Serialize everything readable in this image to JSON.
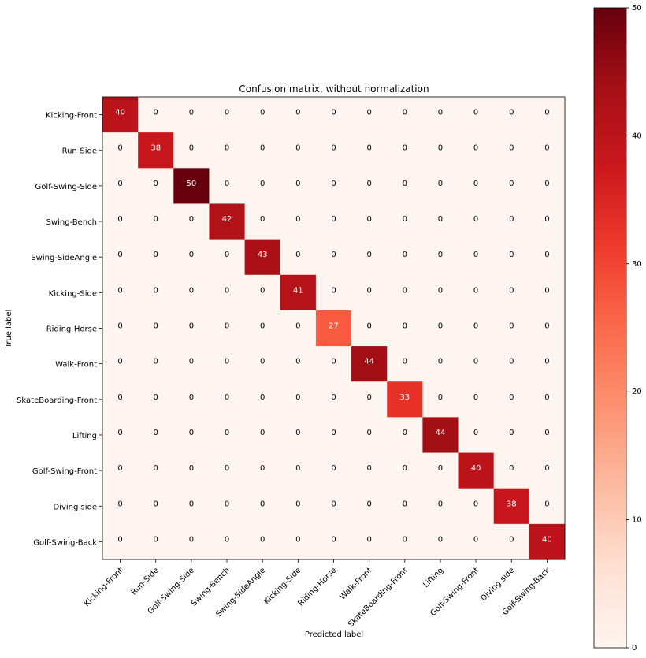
{
  "chart_data": {
    "type": "heatmap",
    "title": "Confusion matrix, without normalization",
    "xlabel": "Predicted label",
    "ylabel": "True label",
    "labels": [
      "Kicking-Front",
      "Run-Side",
      "Golf-Swing-Side",
      "Swing-Bench",
      "Swing-SideAngle",
      "Kicking-Side",
      "Riding-Horse",
      "Walk-Front",
      "SkateBoarding-Front",
      "Lifting",
      "Golf-Swing-Front",
      "Diving side",
      "Golf-Swing-Back"
    ],
    "matrix": [
      [
        40,
        0,
        0,
        0,
        0,
        0,
        0,
        0,
        0,
        0,
        0,
        0,
        0
      ],
      [
        0,
        38,
        0,
        0,
        0,
        0,
        0,
        0,
        0,
        0,
        0,
        0,
        0
      ],
      [
        0,
        0,
        50,
        0,
        0,
        0,
        0,
        0,
        0,
        0,
        0,
        0,
        0
      ],
      [
        0,
        0,
        0,
        42,
        0,
        0,
        0,
        0,
        0,
        0,
        0,
        0,
        0
      ],
      [
        0,
        0,
        0,
        0,
        43,
        0,
        0,
        0,
        0,
        0,
        0,
        0,
        0
      ],
      [
        0,
        0,
        0,
        0,
        0,
        41,
        0,
        0,
        0,
        0,
        0,
        0,
        0
      ],
      [
        0,
        0,
        0,
        0,
        0,
        0,
        27,
        0,
        0,
        0,
        0,
        0,
        0
      ],
      [
        0,
        0,
        0,
        0,
        0,
        0,
        0,
        44,
        0,
        0,
        0,
        0,
        0
      ],
      [
        0,
        0,
        0,
        0,
        0,
        0,
        0,
        0,
        33,
        0,
        0,
        0,
        0
      ],
      [
        0,
        0,
        0,
        0,
        0,
        0,
        0,
        0,
        0,
        44,
        0,
        0,
        0
      ],
      [
        0,
        0,
        0,
        0,
        0,
        0,
        0,
        0,
        0,
        0,
        40,
        0,
        0
      ],
      [
        0,
        0,
        0,
        0,
        0,
        0,
        0,
        0,
        0,
        0,
        0,
        38,
        0
      ],
      [
        0,
        0,
        0,
        0,
        0,
        0,
        0,
        0,
        0,
        0,
        0,
        0,
        40
      ]
    ],
    "colorbar": {
      "min": 0,
      "max": 50,
      "ticks": [
        0,
        10,
        20,
        30,
        40,
        50
      ]
    },
    "colormap": "Reds",
    "colors": {
      "low": "#fff5f0",
      "high": "#67000d",
      "text_dark": "#000000",
      "text_light": "#ffffff"
    },
    "grid": false
  }
}
